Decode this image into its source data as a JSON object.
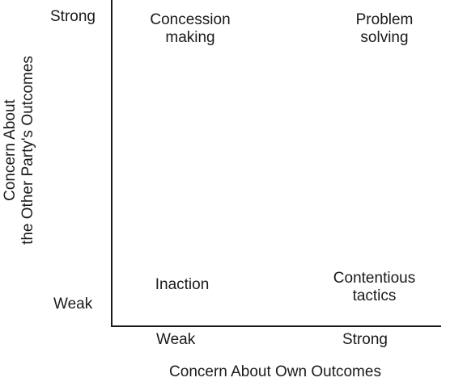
{
  "y_axis": {
    "title_line1": "Concern About",
    "title_line2": "the Other Party's Outcomes",
    "tick_high": "Strong",
    "tick_low": "Weak"
  },
  "x_axis": {
    "title": "Concern About Own Outcomes",
    "tick_low": "Weak",
    "tick_high": "Strong"
  },
  "quadrants": {
    "top_left": {
      "line1": "Concession",
      "line2": "making"
    },
    "top_right": {
      "line1": "Problem",
      "line2": "solving"
    },
    "bottom_left": {
      "line1": "Inaction"
    },
    "bottom_right": {
      "line1": "Contentious",
      "line2": "tactics"
    }
  }
}
